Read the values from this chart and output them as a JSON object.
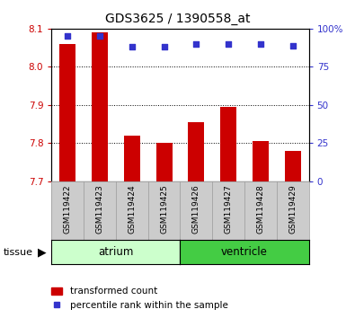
{
  "title": "GDS3625 / 1390558_at",
  "samples": [
    "GSM119422",
    "GSM119423",
    "GSM119424",
    "GSM119425",
    "GSM119426",
    "GSM119427",
    "GSM119428",
    "GSM119429"
  ],
  "transformed_counts": [
    8.06,
    8.09,
    7.82,
    7.8,
    7.855,
    7.895,
    7.805,
    7.78
  ],
  "percentile_ranks": [
    95,
    95,
    88,
    88,
    90,
    90,
    90,
    89
  ],
  "ylim_left": [
    7.7,
    8.1
  ],
  "ylim_right": [
    0,
    100
  ],
  "yticks_left": [
    7.7,
    7.8,
    7.9,
    8.0,
    8.1
  ],
  "yticks_right": [
    0,
    25,
    50,
    75,
    100
  ],
  "bar_color": "#cc0000",
  "dot_color": "#3333cc",
  "bar_width": 0.5,
  "atrium_color": "#ccffcc",
  "ventricle_color": "#44cc44",
  "tissue_label": "tissue",
  "legend_bar_label": "transformed count",
  "legend_dot_label": "percentile rank within the sample",
  "grid_color": "#000000",
  "axis_color_left": "#cc0000",
  "axis_color_right": "#3333cc",
  "plot_bg_color": "#ffffff",
  "tick_bg_color": "#cccccc",
  "figsize": [
    3.95,
    3.54
  ],
  "dpi": 100
}
